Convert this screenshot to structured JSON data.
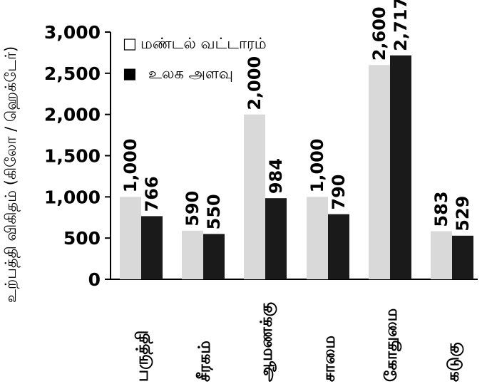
{
  "chart_data": {
    "type": "bar",
    "ylabel": "உற்பத்தி விகிதம் (கிலோ / ஹெக்டேர்)",
    "categories": [
      "பருத்தி",
      "சீரகம்",
      "ஆமணக்கு",
      "சாமை",
      "கோதுமை",
      "கடுகு"
    ],
    "series": [
      {
        "name": "மண்டல் வட்டாரம்",
        "values": [
          1000,
          590,
          2000,
          1000,
          2600,
          583
        ],
        "labels": [
          "1,000",
          "590",
          "2,000",
          "1,000",
          "2,600",
          "583"
        ],
        "color": "#d9d9d9"
      },
      {
        "name": "உலக அளவு",
        "values": [
          766,
          550,
          984,
          790,
          2717,
          529
        ],
        "labels": [
          "766",
          "550",
          "984",
          "790",
          "2,717",
          "529"
        ],
        "color": "#1a1a1a"
      }
    ],
    "ylim": [
      0,
      3000
    ],
    "yticks": [
      0,
      500,
      1000,
      1500,
      2000,
      2500,
      3000
    ],
    "ytick_labels": [
      "0",
      "500",
      "1,000",
      "1,500",
      "2,000",
      "2,500",
      "3,000"
    ],
    "grid": false,
    "legend_position": "top-left",
    "legend_markers": [
      "□",
      "■"
    ]
  }
}
